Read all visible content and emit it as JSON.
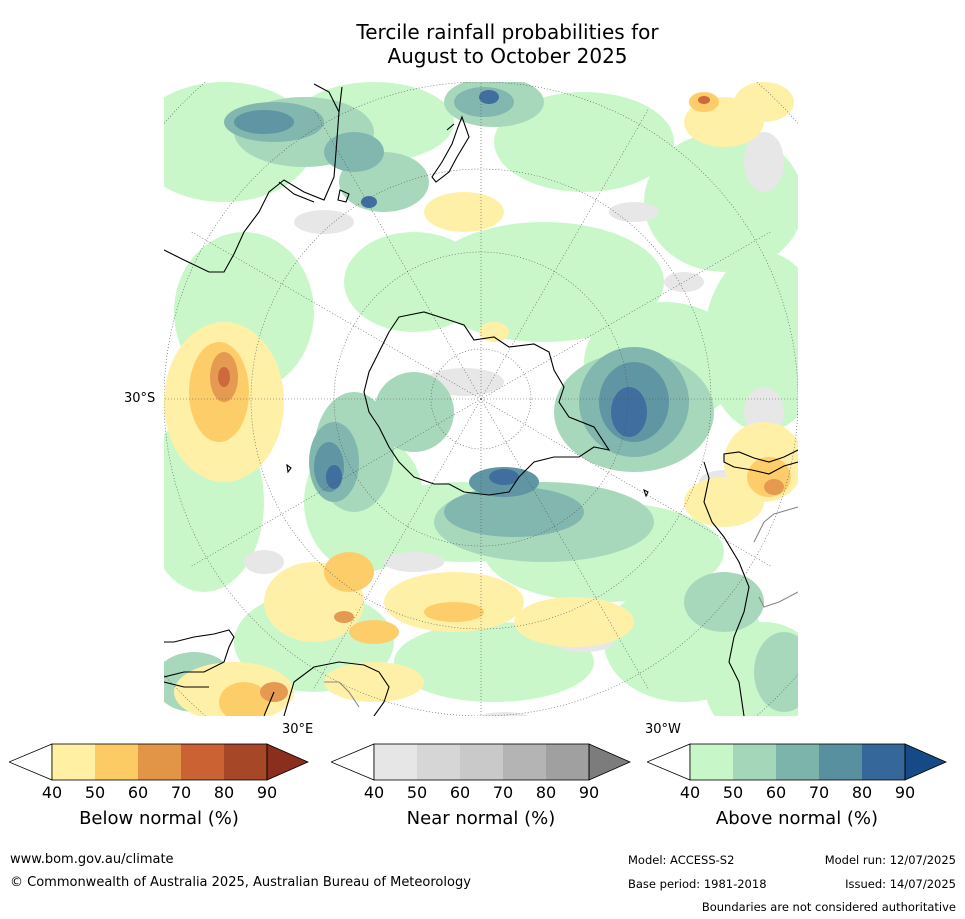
{
  "title_line1": "Tercile rainfall probabilities for",
  "title_line2": "August to October 2025",
  "map": {
    "projection": "south-polar-stereographic",
    "lat_labels": [
      "30°S"
    ],
    "lon_labels": [
      "30°E",
      "30°W"
    ]
  },
  "colorbars": [
    {
      "title": "Below normal (%)",
      "ticks": [
        "40",
        "50",
        "60",
        "70",
        "80",
        "90"
      ],
      "colors": [
        "#fff0a3",
        "#fdcb63",
        "#e39547",
        "#cb6233",
        "#a64728",
        "#8a2f1d"
      ]
    },
    {
      "title": "Near normal (%)",
      "ticks": [
        "40",
        "50",
        "60",
        "70",
        "80",
        "90"
      ],
      "colors": [
        "#e6e6e6",
        "#d6d6d6",
        "#c9c9c9",
        "#b4b4b4",
        "#a0a0a0",
        "#7c7c7c"
      ]
    },
    {
      "title": "Above normal (%)",
      "ticks": [
        "40",
        "50",
        "60",
        "70",
        "80",
        "90"
      ],
      "colors": [
        "#c7f7c8",
        "#a4d6b9",
        "#7cb4ac",
        "#58909f",
        "#35679a",
        "#154a86"
      ]
    }
  ],
  "footer": {
    "website": "www.bom.gov.au/climate",
    "copyright": "© Commonwealth of Australia 2025, Australian Bureau of Meteorology",
    "model": "Model: ACCESS-S2",
    "base_period": "Base period: 1981-2018",
    "model_run": "Model run: 12/07/2025",
    "issued": "Issued: 14/07/2025",
    "disclaimer": "Boundaries are not considered authoritative"
  }
}
